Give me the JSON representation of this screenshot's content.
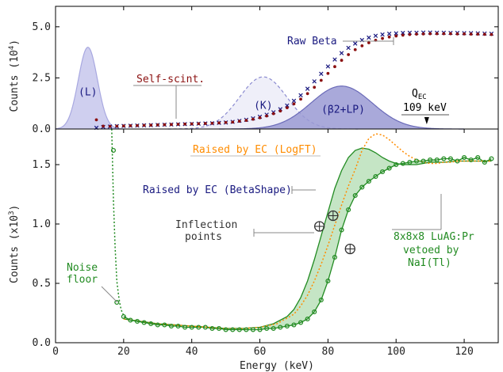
{
  "chart_data": [
    {
      "type": "line",
      "panel": "top",
      "xlim": [
        0,
        130
      ],
      "ylim": [
        0,
        6.0
      ],
      "ylabel": "Counts (10^4)",
      "ylabel_base": "Counts (10",
      "ylabel_exp": "4",
      "ylabel_close": ")",
      "yticks": [
        0.0,
        2.5,
        5.0
      ],
      "ytick_labels": [
        "0.0",
        "2.5",
        "5.0"
      ],
      "grid": false,
      "series": [
        {
          "name": "Raw Beta",
          "color": "#1a1a80",
          "marker": "x",
          "x": [
            12,
            14,
            16,
            18,
            20,
            22,
            24,
            26,
            28,
            30,
            32,
            34,
            36,
            38,
            40,
            42,
            44,
            46,
            48,
            50,
            52,
            54,
            56,
            58,
            60,
            62,
            64,
            66,
            68,
            70,
            72,
            74,
            76,
            78,
            80,
            82,
            84,
            86,
            88,
            90,
            92,
            94,
            96,
            98,
            100,
            102,
            104,
            106,
            108,
            110,
            112,
            114,
            116,
            118,
            120,
            122,
            124,
            126,
            128
          ],
          "y": [
            0.06,
            0.1,
            0.12,
            0.14,
            0.15,
            0.16,
            0.17,
            0.18,
            0.19,
            0.2,
            0.21,
            0.22,
            0.23,
            0.24,
            0.25,
            0.26,
            0.27,
            0.28,
            0.3,
            0.32,
            0.35,
            0.4,
            0.45,
            0.52,
            0.6,
            0.7,
            0.82,
            0.97,
            1.15,
            1.38,
            1.65,
            1.97,
            2.33,
            2.7,
            3.06,
            3.4,
            3.71,
            3.97,
            4.18,
            4.35,
            4.47,
            4.56,
            4.62,
            4.66,
            4.68,
            4.7,
            4.71,
            4.71,
            4.72,
            4.72,
            4.71,
            4.71,
            4.7,
            4.7,
            4.69,
            4.69,
            4.68,
            4.67,
            4.66
          ]
        },
        {
          "name": "Self-scint.",
          "color": "#8b1010",
          "marker": "dot",
          "x": [
            12,
            14,
            16,
            18,
            20,
            22,
            24,
            26,
            28,
            30,
            32,
            34,
            36,
            38,
            40,
            42,
            44,
            46,
            48,
            50,
            52,
            54,
            56,
            58,
            60,
            62,
            64,
            66,
            68,
            70,
            72,
            74,
            76,
            78,
            80,
            82,
            84,
            86,
            88,
            90,
            92,
            94,
            96,
            98,
            100,
            102,
            104,
            106,
            108,
            110,
            112,
            114,
            116,
            118,
            120,
            122,
            124,
            126,
            128
          ],
          "y": [
            0.45,
            0.14,
            0.13,
            0.14,
            0.15,
            0.16,
            0.17,
            0.18,
            0.19,
            0.2,
            0.21,
            0.22,
            0.23,
            0.24,
            0.25,
            0.26,
            0.27,
            0.28,
            0.3,
            0.32,
            0.34,
            0.38,
            0.42,
            0.48,
            0.55,
            0.64,
            0.75,
            0.88,
            1.04,
            1.23,
            1.46,
            1.73,
            2.04,
            2.38,
            2.72,
            3.05,
            3.36,
            3.64,
            3.88,
            4.07,
            4.22,
            4.34,
            4.43,
            4.5,
            4.55,
            4.59,
            4.62,
            4.64,
            4.65,
            4.66,
            4.66,
            4.66,
            4.66,
            4.65,
            4.65,
            4.64,
            4.64,
            4.63,
            4.62
          ]
        }
      ],
      "peaks": [
        {
          "label": "(L)",
          "center": 9.5,
          "sigma": 2.8,
          "amplitude": 4.0,
          "fill": "#c7c7ec",
          "stroke": "#a8a8e0",
          "dashed": false
        },
        {
          "label": "(K)",
          "center": 61,
          "sigma": 7.0,
          "amplitude": 2.55,
          "fill": "#ececf8",
          "stroke": "#8a8ad0",
          "dashed": true
        },
        {
          "label": "(β2+LP)",
          "center": 84,
          "sigma": 9.0,
          "amplitude": 2.1,
          "fill": "#9a9ad4",
          "stroke": "#6a6ab8",
          "dashed": false
        }
      ],
      "annotations": [
        {
          "text": "Raw Beta",
          "color": "#1a1a80"
        },
        {
          "text": "Self-scint.",
          "color": "#8b1010"
        },
        {
          "text": "Q",
          "subscript": "EC",
          "color": "#000000"
        },
        {
          "text": "109 keV",
          "color": "#000000",
          "x": 109
        }
      ]
    },
    {
      "type": "line",
      "panel": "bottom",
      "xlim": [
        0,
        130
      ],
      "ylim": [
        0,
        1.8
      ],
      "xlabel": "Energy (keV)",
      "ylabel": "Counts (x10^3)",
      "ylabel_base": "Counts (x10",
      "ylabel_exp": "3",
      "ylabel_close": ")",
      "xticks": [
        0,
        20,
        40,
        60,
        80,
        100,
        120
      ],
      "xtick_labels": [
        "0",
        "20",
        "40",
        "60",
        "80",
        "100",
        "120"
      ],
      "yticks": [
        0.0,
        0.5,
        1.0,
        1.5
      ],
      "ytick_labels": [
        "0.0",
        "0.5",
        "1.0",
        "1.5"
      ],
      "grid": false,
      "series": [
        {
          "name": "8x8x8 LuAG:Pr vetoed by NaI(Tl)",
          "color": "#228b22",
          "marker": "circle",
          "x": [
            18,
            20,
            22,
            24,
            26,
            28,
            30,
            32,
            34,
            36,
            38,
            40,
            42,
            44,
            46,
            48,
            50,
            52,
            54,
            56,
            58,
            60,
            62,
            64,
            66,
            68,
            70,
            72,
            74,
            76,
            78,
            80,
            82,
            84,
            86,
            88,
            90,
            92,
            94,
            96,
            98,
            100,
            102,
            104,
            106,
            108,
            110,
            112,
            114,
            116,
            118,
            120,
            122,
            124,
            126,
            128
          ],
          "y": [
            0.34,
            0.22,
            0.19,
            0.18,
            0.17,
            0.16,
            0.15,
            0.15,
            0.14,
            0.14,
            0.13,
            0.13,
            0.13,
            0.13,
            0.12,
            0.12,
            0.11,
            0.11,
            0.11,
            0.11,
            0.11,
            0.11,
            0.12,
            0.12,
            0.13,
            0.14,
            0.15,
            0.17,
            0.2,
            0.26,
            0.36,
            0.52,
            0.72,
            0.95,
            1.12,
            1.24,
            1.31,
            1.36,
            1.4,
            1.44,
            1.47,
            1.5,
            1.51,
            1.52,
            1.53,
            1.53,
            1.54,
            1.54,
            1.55,
            1.55,
            1.53,
            1.56,
            1.54,
            1.56,
            1.52,
            1.55
          ]
        },
        {
          "name": "Noise floor",
          "color": "#228b22",
          "marker": "none",
          "dotted": true,
          "x": [
            16.5,
            17,
            17.5,
            18,
            18.5,
            19,
            19.5,
            20,
            21,
            22,
            24,
            26
          ],
          "y": [
            1.8,
            1.2,
            0.8,
            0.52,
            0.4,
            0.31,
            0.26,
            0.23,
            0.2,
            0.19,
            0.18,
            0.17
          ]
        },
        {
          "name": "Raised by EC (LogFT)",
          "color": "#ff8c00",
          "marker": "none",
          "dotted": true,
          "x": [
            20,
            30,
            40,
            50,
            55,
            60,
            65,
            70,
            72,
            74,
            76,
            78,
            80,
            82,
            84,
            86,
            88,
            90,
            92,
            94,
            96,
            98,
            100,
            102,
            104,
            106,
            108,
            110,
            112,
            114,
            116,
            118,
            120,
            124,
            128
          ],
          "y": [
            0.2,
            0.16,
            0.14,
            0.12,
            0.12,
            0.13,
            0.16,
            0.24,
            0.31,
            0.4,
            0.52,
            0.66,
            0.82,
            0.99,
            1.16,
            1.32,
            1.46,
            1.62,
            1.72,
            1.76,
            1.75,
            1.71,
            1.66,
            1.61,
            1.57,
            1.54,
            1.52,
            1.51,
            1.51,
            1.52,
            1.52,
            1.53,
            1.53,
            1.53,
            1.53
          ]
        },
        {
          "name": "Raised by EC (BetaShape)",
          "color": "#228b22",
          "marker": "none",
          "x": [
            20,
            30,
            40,
            50,
            55,
            60,
            64,
            68,
            70,
            72,
            74,
            76,
            78,
            80,
            82,
            84,
            86,
            88,
            90,
            92,
            94,
            96,
            98,
            100,
            102,
            104,
            106,
            108,
            110,
            114,
            118,
            122,
            126,
            128
          ],
          "y": [
            0.2,
            0.16,
            0.14,
            0.12,
            0.12,
            0.13,
            0.16,
            0.22,
            0.28,
            0.38,
            0.52,
            0.7,
            0.9,
            1.1,
            1.3,
            1.45,
            1.56,
            1.62,
            1.64,
            1.63,
            1.6,
            1.56,
            1.53,
            1.51,
            1.5,
            1.5,
            1.5,
            1.51,
            1.52,
            1.52,
            1.53,
            1.53,
            1.53,
            1.53
          ]
        }
      ],
      "inflection_points": [
        {
          "x": 77.5,
          "y": 0.98
        },
        {
          "x": 81.5,
          "y": 1.07
        },
        {
          "x": 86.5,
          "y": 0.79
        }
      ],
      "annotations": [
        {
          "text": "Raised by EC (LogFT)",
          "color": "#ff8c00"
        },
        {
          "text": "Raised by EC (BetaShape)",
          "color": "#1a1a80"
        },
        {
          "text": "Inflection",
          "color": "#333333"
        },
        {
          "text": "points",
          "color": "#333333"
        },
        {
          "text": "Noise",
          "color": "#228b22"
        },
        {
          "text": "floor",
          "color": "#228b22"
        },
        {
          "text": "8x8x8 LuAG:Pr",
          "color": "#228b22"
        },
        {
          "text": "vetoed by",
          "color": "#228b22"
        },
        {
          "text": "NaI(Tl)",
          "color": "#228b22"
        }
      ]
    }
  ]
}
